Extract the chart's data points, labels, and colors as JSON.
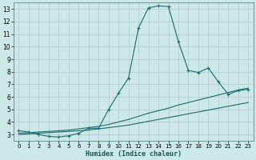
{
  "xlabel": "Humidex (Indice chaleur)",
  "bg_color": "#cce8e8",
  "grid_color": "#b0c8c8",
  "line_color": "#1a6b6b",
  "xlim": [
    -0.5,
    23.5
  ],
  "ylim": [
    2.5,
    13.5
  ],
  "xticks": [
    0,
    1,
    2,
    3,
    4,
    5,
    6,
    7,
    8,
    9,
    10,
    11,
    12,
    13,
    14,
    15,
    16,
    17,
    18,
    19,
    20,
    21,
    22,
    23
  ],
  "yticks": [
    3,
    4,
    5,
    6,
    7,
    8,
    9,
    10,
    11,
    12,
    13
  ],
  "series1_x": [
    0,
    1,
    2,
    3,
    4,
    5,
    6,
    7,
    8,
    9,
    10,
    11,
    12,
    13,
    14,
    15,
    16,
    17,
    18,
    19,
    20,
    21,
    22,
    23
  ],
  "series1_y": [
    3.3,
    3.2,
    3.0,
    2.85,
    2.8,
    2.9,
    3.1,
    3.5,
    3.5,
    5.0,
    6.3,
    7.5,
    11.5,
    13.1,
    13.25,
    13.2,
    10.4,
    8.1,
    7.95,
    8.3,
    7.2,
    6.2,
    6.5,
    6.6
  ],
  "series2_x": [
    0,
    1,
    2,
    3,
    4,
    5,
    6,
    7,
    8,
    9,
    10,
    11,
    12,
    13,
    14,
    15,
    16,
    17,
    18,
    19,
    20,
    21,
    22,
    23
  ],
  "series2_y": [
    3.1,
    3.15,
    3.2,
    3.25,
    3.3,
    3.35,
    3.45,
    3.55,
    3.65,
    3.8,
    4.0,
    4.2,
    4.45,
    4.7,
    4.9,
    5.1,
    5.35,
    5.55,
    5.75,
    5.95,
    6.15,
    6.35,
    6.55,
    6.7
  ],
  "series3_x": [
    0,
    1,
    2,
    3,
    4,
    5,
    6,
    7,
    8,
    9,
    10,
    11,
    12,
    13,
    14,
    15,
    16,
    17,
    18,
    19,
    20,
    21,
    22,
    23
  ],
  "series3_y": [
    3.0,
    3.05,
    3.1,
    3.15,
    3.2,
    3.25,
    3.3,
    3.35,
    3.45,
    3.55,
    3.65,
    3.75,
    3.9,
    4.05,
    4.2,
    4.35,
    4.5,
    4.65,
    4.8,
    4.95,
    5.1,
    5.25,
    5.4,
    5.55
  ]
}
